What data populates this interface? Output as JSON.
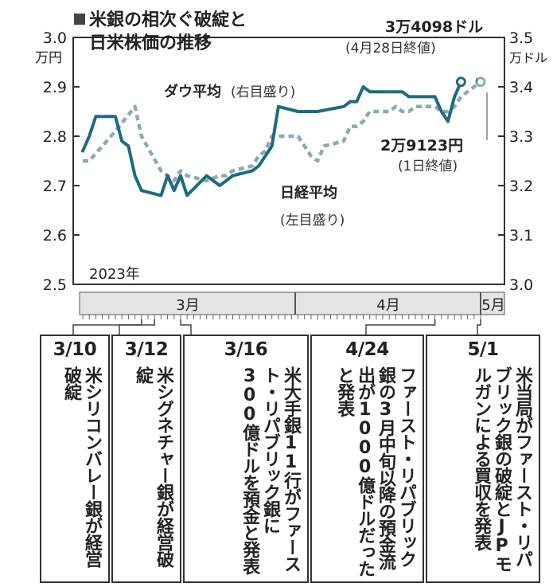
{
  "title_lines": [
    "米銀の相次ぐ破綻と",
    "日米株価の推移"
  ],
  "left_unit": "万円",
  "right_unit": "万ドル",
  "year_label": "2023年",
  "months": [
    "3月",
    "4月",
    "5月"
  ],
  "dow_label": "ダウ平均",
  "dow_scale": "(右目盛り)",
  "nikkei_label": "日経平均",
  "nikkei_scale": "(左目盛り)",
  "dow_annotation": [
    "3万4098ドル",
    "(4月28日終値)"
  ],
  "nikkei_annotation": [
    "2万9123円",
    "(1日終値)"
  ],
  "colors": {
    "dow": "#1e6b80",
    "nikkei": "#8ea9b3",
    "timeline_bg": "#e4e4e4",
    "border": "#333333"
  },
  "chart_data": {
    "type": "line",
    "x_range": [
      "2023-03-01",
      "2023-05-01"
    ],
    "left_axis": {
      "label": "万円",
      "range": [
        2.5,
        3.0
      ],
      "ticks": [
        "3.0",
        "2.9",
        "2.8",
        "2.7",
        "2.6",
        "2.5"
      ]
    },
    "right_axis": {
      "label": "万ドル",
      "range": [
        3.0,
        3.5
      ],
      "ticks": [
        "3.5",
        "3.4",
        "3.3",
        "3.2",
        "3.1",
        "3.0"
      ]
    },
    "grid": false,
    "series": [
      {
        "name": "ダウ平均",
        "axis": "right",
        "style": "solid",
        "x": [
          "2023-03-01",
          "2023-03-02",
          "2023-03-03",
          "2023-03-06",
          "2023-03-07",
          "2023-03-08",
          "2023-03-09",
          "2023-03-10",
          "2023-03-13",
          "2023-03-14",
          "2023-03-15",
          "2023-03-16",
          "2023-03-17",
          "2023-03-20",
          "2023-03-21",
          "2023-03-22",
          "2023-03-23",
          "2023-03-24",
          "2023-03-27",
          "2023-03-28",
          "2023-03-29",
          "2023-03-30",
          "2023-03-31",
          "2023-04-03",
          "2023-04-04",
          "2023-04-05",
          "2023-04-06",
          "2023-04-10",
          "2023-04-11",
          "2023-04-12",
          "2023-04-13",
          "2023-04-14",
          "2023-04-17",
          "2023-04-18",
          "2023-04-19",
          "2023-04-20",
          "2023-04-21",
          "2023-04-24",
          "2023-04-25",
          "2023-04-26",
          "2023-04-27",
          "2023-04-28"
        ],
        "y": [
          3.27,
          3.3,
          3.34,
          3.34,
          3.29,
          3.28,
          3.22,
          3.19,
          3.18,
          3.22,
          3.19,
          3.22,
          3.18,
          3.22,
          3.21,
          3.2,
          3.21,
          3.22,
          3.23,
          3.24,
          3.26,
          3.28,
          3.36,
          3.35,
          3.35,
          3.35,
          3.35,
          3.36,
          3.37,
          3.37,
          3.4,
          3.39,
          3.39,
          3.39,
          3.39,
          3.38,
          3.38,
          3.38,
          3.35,
          3.33,
          3.38,
          3.41
        ]
      },
      {
        "name": "日経平均",
        "axis": "left",
        "style": "dotted",
        "x": [
          "2023-03-01",
          "2023-03-02",
          "2023-03-06",
          "2023-03-09",
          "2023-03-10",
          "2023-03-13",
          "2023-03-14",
          "2023-03-15",
          "2023-03-16",
          "2023-03-17",
          "2023-03-20",
          "2023-03-22",
          "2023-03-23",
          "2023-03-24",
          "2023-03-27",
          "2023-03-28",
          "2023-03-29",
          "2023-03-30",
          "2023-03-31",
          "2023-04-03",
          "2023-04-04",
          "2023-04-05",
          "2023-04-06",
          "2023-04-07",
          "2023-04-10",
          "2023-04-11",
          "2023-04-12",
          "2023-04-13",
          "2023-04-14",
          "2023-04-17",
          "2023-04-18",
          "2023-04-19",
          "2023-04-20",
          "2023-04-21",
          "2023-04-24",
          "2023-04-25",
          "2023-04-26",
          "2023-04-27",
          "2023-04-28",
          "2023-05-01"
        ],
        "y": [
          2.75,
          2.75,
          2.81,
          2.86,
          2.8,
          2.73,
          2.72,
          2.71,
          2.73,
          2.72,
          2.71,
          2.72,
          2.72,
          2.73,
          2.74,
          2.76,
          2.77,
          2.8,
          2.8,
          2.8,
          2.78,
          2.76,
          2.75,
          2.78,
          2.79,
          2.82,
          2.82,
          2.83,
          2.85,
          2.85,
          2.86,
          2.85,
          2.85,
          2.86,
          2.86,
          2.85,
          2.85,
          2.86,
          2.88,
          2.91
        ]
      }
    ]
  },
  "events": [
    {
      "date": "3/10",
      "text": "米シリコンバレー銀が経営破綻"
    },
    {
      "date": "3/12",
      "text": "米シグネチャー銀が経営破綻"
    },
    {
      "date": "3/16",
      "text": "米大手銀11行がファースト・リパブリック銀に300億ドルを預金と発表"
    },
    {
      "date": "4/24",
      "text": "ファースト・リパブリック銀の3月中旬以降の預金流出が1000億ドルだったと発表"
    },
    {
      "date": "5/1",
      "text": "米当局がファースト・リパブリック銀の破綻とJPモルガンによる買収を発表"
    }
  ]
}
